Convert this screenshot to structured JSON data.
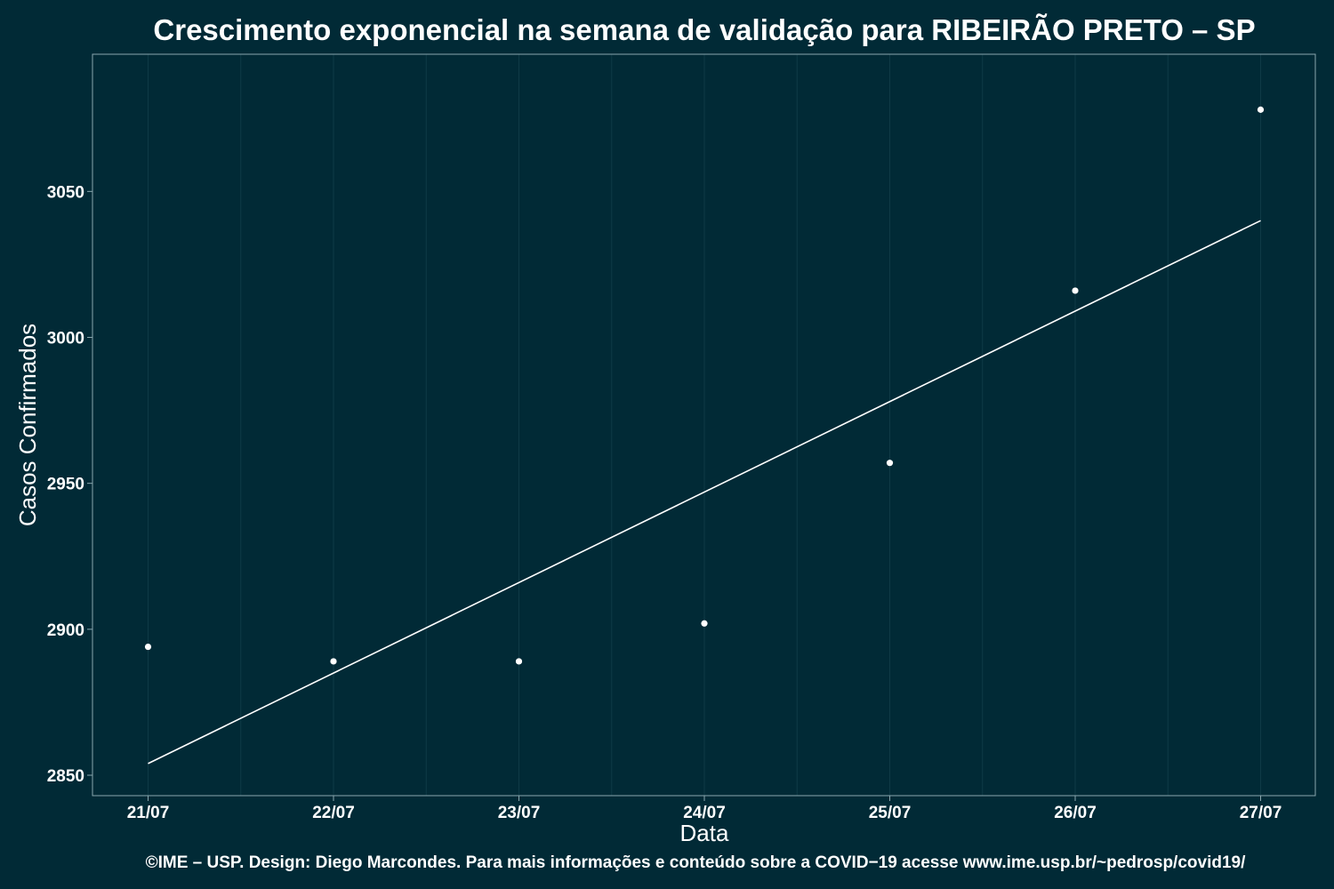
{
  "chart_data": {
    "type": "scatter",
    "title": "Crescimento exponencial na semana de validação para RIBEIRÃO PRETO – SP",
    "xlabel": "Data",
    "ylabel": "Casos Confirmados",
    "caption": "©IME – USP. Design: Diego Marcondes. Para mais informações e conteúdo sobre a COVID−19 acesse www.ime.usp.br/~pedrosp/covid19/",
    "categories": [
      "21/07",
      "22/07",
      "23/07",
      "24/07",
      "25/07",
      "26/07",
      "27/07"
    ],
    "series": [
      {
        "values": [
          2894,
          2889,
          2889,
          2902,
          2957,
          3016,
          3078
        ]
      }
    ],
    "fit_line": {
      "start": 2854,
      "end": 3040
    },
    "y_ticks": [
      2850,
      2900,
      2950,
      3000,
      3050
    ],
    "ylim": [
      2843,
      3097
    ],
    "grid": true,
    "legend": "none",
    "colors": {
      "background": "#012a36",
      "grid": "#0f3a46",
      "frame": "#8aa6ad",
      "marks": "#ffffff"
    }
  }
}
